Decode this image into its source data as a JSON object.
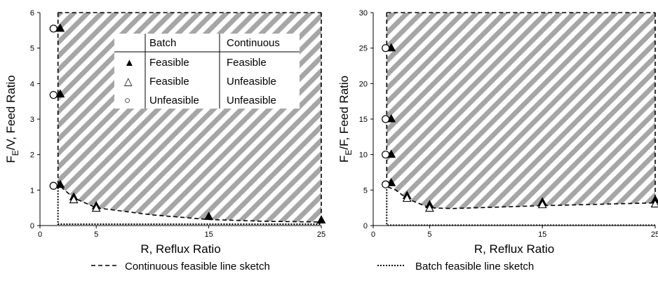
{
  "chart_data": [
    {
      "type": "scatter",
      "xlabel": "R, Reflux Ratio",
      "ylabel_main": "F",
      "ylabel_sub": "E",
      "ylabel_rest": "/V, Feed Ratio",
      "xlim": [
        0,
        25
      ],
      "ylim": [
        0,
        6
      ],
      "xticks": [
        "0",
        "5",
        "15",
        "25"
      ],
      "xtick_values": [
        0,
        5,
        15,
        25
      ],
      "yticks": [
        "0",
        "1",
        "2",
        "3",
        "4",
        "5",
        "6"
      ],
      "ytick_values": [
        0,
        1,
        2,
        3,
        4,
        5,
        6
      ],
      "region": "hatched feasible region",
      "points": [
        {
          "marker": "filled-triangle",
          "x": 1.8,
          "y": 5.55
        },
        {
          "marker": "filled-triangle",
          "x": 1.8,
          "y": 3.7
        },
        {
          "marker": "filled-triangle",
          "x": 1.8,
          "y": 1.15
        },
        {
          "marker": "filled-triangle",
          "x": 3,
          "y": 0.8
        },
        {
          "marker": "filled-triangle",
          "x": 5,
          "y": 0.55
        },
        {
          "marker": "filled-triangle",
          "x": 15,
          "y": 0.25
        },
        {
          "marker": "filled-triangle",
          "x": 25,
          "y": 0.15
        },
        {
          "marker": "open-triangle",
          "x": 3,
          "y": 0.72
        },
        {
          "marker": "open-triangle",
          "x": 5,
          "y": 0.48
        },
        {
          "marker": "circle",
          "x": 1.2,
          "y": 5.55
        },
        {
          "marker": "circle",
          "x": 1.2,
          "y": 3.68
        },
        {
          "marker": "circle",
          "x": 1.2,
          "y": 1.12
        }
      ],
      "continuous_line": [
        [
          1.6,
          6.0
        ],
        [
          1.6,
          1.2
        ],
        [
          2,
          1.05
        ],
        [
          3,
          0.78
        ],
        [
          5,
          0.5
        ],
        [
          10,
          0.3
        ],
        [
          15,
          0.17
        ],
        [
          20,
          0.12
        ],
        [
          25,
          0.1
        ]
      ],
      "batch_line": [
        [
          1.6,
          1.15
        ],
        [
          1.6,
          0.04
        ],
        [
          25,
          0.04
        ]
      ],
      "legend_table": {
        "headers": [
          "",
          "Batch",
          "Continuous"
        ],
        "rows": [
          {
            "marker": "filled-triangle",
            "symbol": "▲",
            "batch": "Feasible",
            "continuous": "Feasible"
          },
          {
            "marker": "open-triangle",
            "symbol": "△",
            "batch": "Feasible",
            "continuous": "Unfeasible"
          },
          {
            "marker": "circle",
            "symbol": "○",
            "batch": "Unfeasible",
            "continuous": "Unfeasible"
          }
        ]
      }
    },
    {
      "type": "scatter",
      "xlabel": "R, Reflux Ratio",
      "ylabel_main": "F",
      "ylabel_sub": "E",
      "ylabel_rest": "/F, Feed Ratio",
      "xlim": [
        0,
        25
      ],
      "ylim": [
        0,
        30
      ],
      "xticks": [
        "0",
        "5",
        "15",
        "25"
      ],
      "xtick_values": [
        0,
        5,
        15,
        25
      ],
      "yticks": [
        "0",
        "5",
        "10",
        "15",
        "20",
        "25",
        "30"
      ],
      "ytick_values": [
        0,
        5,
        10,
        15,
        20,
        25,
        30
      ],
      "region": "hatched feasible region",
      "points": [
        {
          "marker": "filled-triangle",
          "x": 1.6,
          "y": 25.0
        },
        {
          "marker": "filled-triangle",
          "x": 1.6,
          "y": 15.0
        },
        {
          "marker": "filled-triangle",
          "x": 1.6,
          "y": 10.0
        },
        {
          "marker": "filled-triangle",
          "x": 1.6,
          "y": 6.0
        },
        {
          "marker": "filled-triangle",
          "x": 3,
          "y": 4.2
        },
        {
          "marker": "filled-triangle",
          "x": 5,
          "y": 2.9
        },
        {
          "marker": "filled-triangle",
          "x": 15,
          "y": 3.3
        },
        {
          "marker": "filled-triangle",
          "x": 25,
          "y": 3.6
        },
        {
          "marker": "open-triangle",
          "x": 3,
          "y": 3.8
        },
        {
          "marker": "open-triangle",
          "x": 5,
          "y": 2.4
        },
        {
          "marker": "open-triangle",
          "x": 15,
          "y": 2.9
        },
        {
          "marker": "open-triangle",
          "x": 25,
          "y": 3.0
        },
        {
          "marker": "circle",
          "x": 1.1,
          "y": 25.0
        },
        {
          "marker": "circle",
          "x": 1.1,
          "y": 15.0
        },
        {
          "marker": "circle",
          "x": 1.1,
          "y": 10.0
        },
        {
          "marker": "circle",
          "x": 1.1,
          "y": 5.8
        }
      ],
      "continuous_line": [
        [
          1.2,
          30.0
        ],
        [
          1.2,
          5.5
        ],
        [
          2,
          5.0
        ],
        [
          3,
          3.8
        ],
        [
          5,
          2.5
        ],
        [
          7,
          2.4
        ],
        [
          15,
          2.8
        ],
        [
          25,
          3.2
        ]
      ],
      "batch_line": [
        [
          1.2,
          5.5
        ],
        [
          1.2,
          0.05
        ],
        [
          25,
          0.05
        ]
      ]
    }
  ],
  "legend": {
    "continuous_label": "Continuous feasible line sketch",
    "batch_label": "Batch feasible line sketch"
  },
  "colors": {
    "hatch": "#a6a6a6",
    "background": "#ffffff",
    "axis": "#000000"
  }
}
